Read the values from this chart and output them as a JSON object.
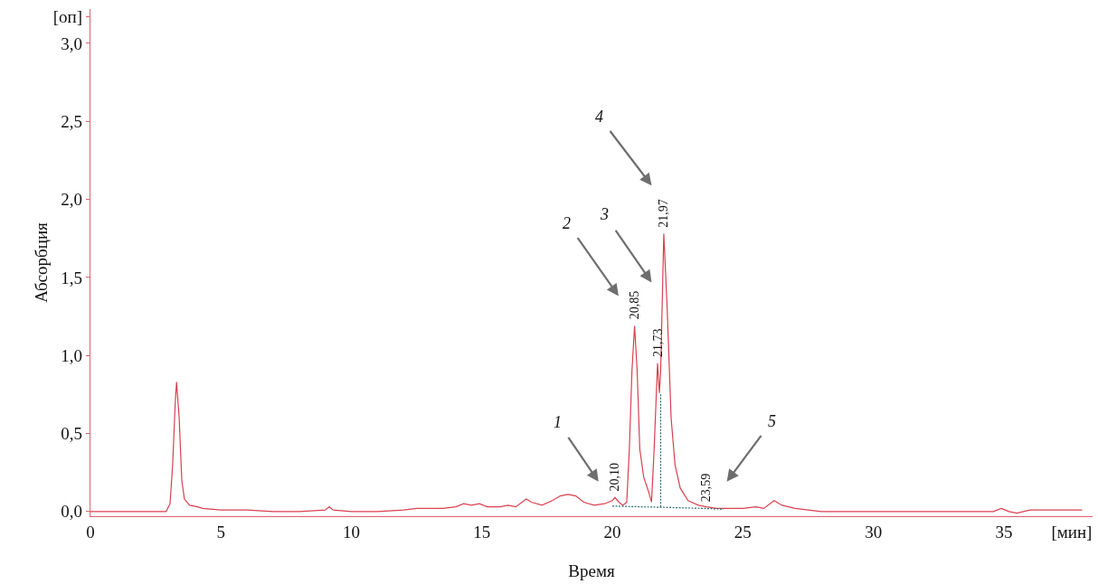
{
  "chart_data": {
    "type": "line",
    "xlabel": "Время",
    "ylabel": "Абсорбция",
    "xlim": [
      0,
      38.4
    ],
    "ylim": [
      -0.03,
      3.22
    ],
    "xticks": [
      0,
      5,
      10,
      15,
      20,
      25,
      30,
      35,
      {
        "value": 37.6,
        "label": "[мин]"
      }
    ],
    "yticks": [
      {
        "value": 0,
        "label": "0,0"
      },
      {
        "value": 0.5,
        "label": "0,5"
      },
      {
        "value": 1,
        "label": "1,0"
      },
      {
        "value": 1.5,
        "label": "1,5"
      },
      {
        "value": 2,
        "label": "2,0"
      },
      {
        "value": 2.5,
        "label": "2,5"
      },
      {
        "value": 3,
        "label": "3,0"
      },
      {
        "value": 3.17,
        "label": "[оп]"
      }
    ],
    "grid": false,
    "marker": "none",
    "series": [
      {
        "color": "#d9404f",
        "line_style": "solid",
        "x": [
          0,
          2.9,
          3.05,
          3.15,
          3.25,
          3.3,
          3.4,
          3.5,
          3.6,
          3.8,
          4.1,
          4.3,
          5,
          6,
          7,
          8,
          9,
          9.15,
          9.3,
          10,
          11,
          12,
          12.5,
          13.5,
          14,
          14.3,
          14.6,
          14.9,
          15.2,
          15.7,
          16,
          16.3,
          16.7,
          16.9,
          17.3,
          17.7,
          18,
          18.3,
          18.6,
          18.9,
          19.3,
          19.7,
          20.0,
          20.1,
          20.25,
          20.4,
          20.55,
          20.65,
          20.75,
          20.85,
          20.95,
          21.05,
          21.2,
          21.4,
          21.5,
          21.6,
          21.73,
          21.8,
          21.85,
          21.97,
          22.1,
          22.25,
          22.4,
          22.6,
          22.9,
          23.3,
          23.6,
          24,
          25,
          25.5,
          25.8,
          26.2,
          26.5,
          27,
          28,
          30,
          34.6,
          34.9,
          35.2,
          35.5,
          36,
          37,
          38
        ],
        "values": [
          0,
          0,
          0.05,
          0.3,
          0.7,
          0.83,
          0.6,
          0.2,
          0.08,
          0.04,
          0.03,
          0.02,
          0.01,
          0.01,
          0,
          0,
          0.01,
          0.03,
          0.01,
          0,
          0,
          0.01,
          0.02,
          0.02,
          0.03,
          0.05,
          0.04,
          0.05,
          0.03,
          0.03,
          0.04,
          0.03,
          0.08,
          0.06,
          0.04,
          0.07,
          0.1,
          0.11,
          0.1,
          0.06,
          0.04,
          0.05,
          0.07,
          0.09,
          0.06,
          0.04,
          0.06,
          0.4,
          0.9,
          1.19,
          0.9,
          0.4,
          0.22,
          0.12,
          0.06,
          0.4,
          0.95,
          0.76,
          0.9,
          1.78,
          1.3,
          0.6,
          0.3,
          0.15,
          0.07,
          0.04,
          0.03,
          0.02,
          0.02,
          0.03,
          0.02,
          0.07,
          0.04,
          0.02,
          0,
          0,
          0,
          0.02,
          0,
          -0.01,
          0.01,
          0.01,
          0.01
        ]
      },
      {
        "color": "#2a6a6a",
        "line_style": "dotted",
        "x": [
          20.0,
          23.5,
          24.26
        ],
        "values": [
          0.035,
          0.02,
          0.015
        ]
      },
      {
        "color": "#2a6a6a",
        "line_style": "dotted",
        "x": [
          21.85,
          21.85
        ],
        "values": [
          0.03,
          0.76
        ]
      }
    ],
    "annotations": [
      {
        "text": "20,10",
        "x": 20.1,
        "y": 0.1
      },
      {
        "text": "20,85",
        "x": 20.85,
        "y": 1.2
      },
      {
        "text": "21,73",
        "x": 21.73,
        "y": 0.96
      },
      {
        "text": "21,97",
        "x": 21.97,
        "y": 1.79
      },
      {
        "text": "23,59",
        "x": 23.59,
        "y": 0.03
      },
      "1",
      "2",
      "3",
      "4",
      "5"
    ]
  }
}
